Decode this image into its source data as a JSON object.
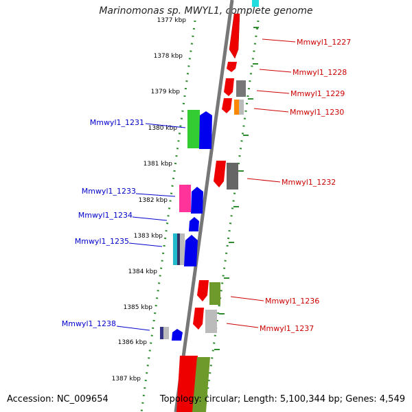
{
  "title": "Marinomonas sp. MWYL1, complete genome",
  "footer": {
    "accession": "Accession: NC_009654",
    "summary": "Topology: circular; Length: 5,100,344 bp; Genes: 4,549"
  },
  "ticks": [
    "1377 kbp",
    "1378 kbp",
    "1379 kbp",
    "1380 kbp",
    "1381 kbp",
    "1382 kbp",
    "1383 kbp",
    "1384 kbp",
    "1385 kbp",
    "1386 kbp",
    "1387 kbp"
  ],
  "forward_labels": [
    "Mmwyl1_1231",
    "Mmwyl1_1233",
    "Mmwyl1_1234",
    "Mmwyl1_1235",
    "Mmwyl1_1238"
  ],
  "reverse_labels": [
    "Mmwyl1_1227",
    "Mmwyl1_1228",
    "Mmwyl1_1229",
    "Mmwyl1_1230",
    "Mmwyl1_1232",
    "Mmwyl1_1236",
    "Mmwyl1_1237"
  ],
  "colors": {
    "forward_label": "#0000cc",
    "reverse_label": "#cc0000",
    "backbone": "#777777",
    "dots": "#2e8b2e"
  }
}
